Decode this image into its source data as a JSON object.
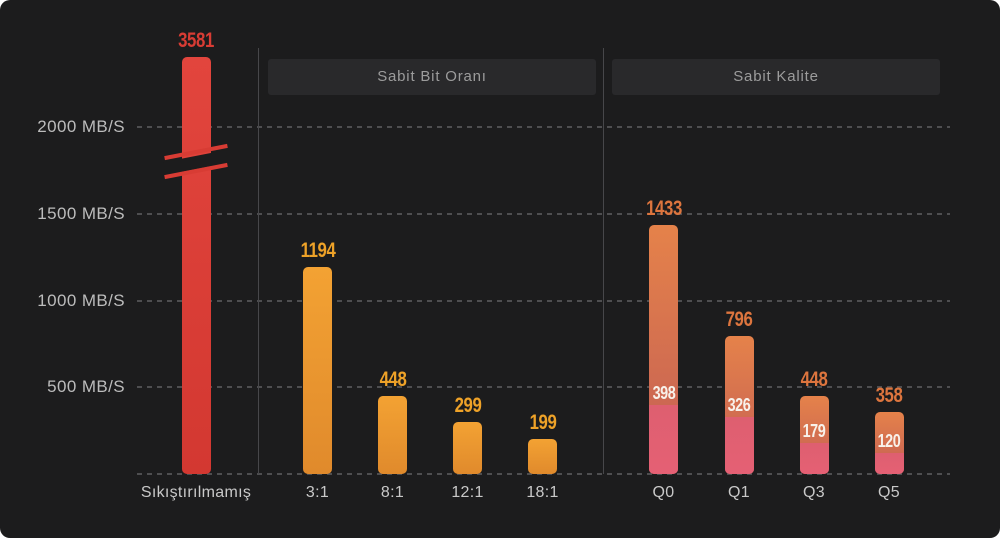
{
  "colors": {
    "background": "#1c1c1d",
    "grid": "#4e4e50",
    "separator": "#47474a",
    "header_bg": "#29292b",
    "header_text": "#9c9c9c",
    "axis_text": "#bcbcbc",
    "category_text": "#c9c9c9",
    "uncompressed_bar_top": "#e2453d",
    "uncompressed_bar_bottom": "#d33831",
    "uncompressed_label": "#d83c34",
    "cbr_bar_top": "#f3a233",
    "cbr_bar_bottom": "#e08a2c",
    "cbr_label": "#eea228",
    "cq_bar_top": "#e5824a",
    "cq_bar_mid": "#c35e55",
    "cq_bar_low": "#de5f70",
    "cq_bar_bottom": "#e56074",
    "cq_label": "#dd753e",
    "cq_sub_label": "#f8f1ea"
  },
  "chart_data": {
    "type": "bar",
    "title": "",
    "ylabel": "MB/S",
    "ylim": [
      0,
      2400
    ],
    "grid": true,
    "y_ticks": [
      {
        "value": 2000,
        "label": "2000 MB/S"
      },
      {
        "value": 1500,
        "label": "1500 MB/S"
      },
      {
        "value": 1000,
        "label": "1000 MB/S"
      },
      {
        "value": 500,
        "label": "500 MB/S"
      }
    ],
    "axis_break": {
      "present": true,
      "applies_to": "Sıkıştırılmamış",
      "between": [
        1750,
        2000
      ]
    },
    "groups": [
      {
        "header": null,
        "style": "uncompressed",
        "bars": [
          {
            "category": "Sıkıştırılmamış",
            "value": 3581
          }
        ]
      },
      {
        "header": "Sabit Bit Oranı",
        "style": "cbr",
        "bars": [
          {
            "category": "3:1",
            "value": 1194
          },
          {
            "category": "8:1",
            "value": 448
          },
          {
            "category": "12:1",
            "value": 299
          },
          {
            "category": "18:1",
            "value": 199
          }
        ]
      },
      {
        "header": "Sabit Kalite",
        "style": "cq",
        "bars": [
          {
            "category": "Q0",
            "value": 1433,
            "sub_value": 398
          },
          {
            "category": "Q1",
            "value": 796,
            "sub_value": 326
          },
          {
            "category": "Q3",
            "value": 448,
            "sub_value": 179
          },
          {
            "category": "Q5",
            "value": 358,
            "sub_value": 120
          }
        ]
      }
    ]
  }
}
